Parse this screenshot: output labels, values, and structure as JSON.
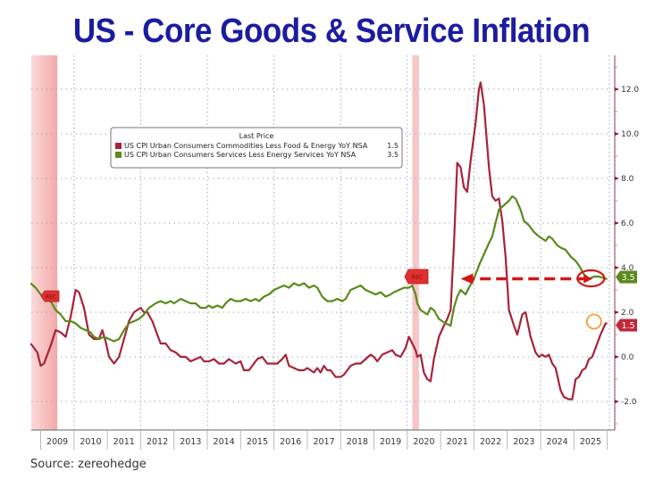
{
  "chart_data": {
    "type": "line",
    "title": "US - Core Goods & Service Inflation",
    "source": "Source: zereohedge",
    "xlabel": "",
    "ylabel": "",
    "x_range": [
      2008.7,
      2025.75
    ],
    "ylim": [
      -3.2,
      13.2
    ],
    "y_ticks": [
      -2.0,
      0.0,
      2.0,
      4.0,
      6.0,
      8.0,
      10.0,
      12.0
    ],
    "y_tick_labels": [
      "-2.0",
      "0.0",
      "2.0",
      "4.0",
      "6.0",
      "8.0",
      "10.0",
      "12.0"
    ],
    "x_tick_labels": [
      "2009",
      "2010",
      "2011",
      "2012",
      "2013",
      "2014",
      "2015",
      "2016",
      "2017",
      "2018",
      "2019",
      "2020",
      "2021",
      "2022",
      "2023",
      "2024",
      "2025"
    ],
    "grid": true,
    "legend": {
      "placement": "top-left",
      "header": "Last Price",
      "entries": [
        {
          "label": "US CPI Urban Consumers Commodities Less Food & Energy YoY NSA",
          "value": "1.5",
          "color": "#a8233a"
        },
        {
          "label": "US CPI Urban Consumers Services Less Energy Services YoY NSA",
          "value": "3.5",
          "color": "#5a8a1a"
        }
      ]
    },
    "recessions": [
      {
        "start": 2008.7,
        "end": 2009.5,
        "label": "REC"
      },
      {
        "start": 2020.15,
        "end": 2020.35,
        "label": "REC"
      }
    ],
    "last_value_tags": [
      {
        "series": "services",
        "value": "3.5",
        "color": "#5a8a1a"
      },
      {
        "series": "goods",
        "value": "1.5",
        "color": "#c0283c"
      }
    ],
    "annotations": [
      {
        "type": "dashed-arrow",
        "from_x": 2025.4,
        "to_x": 2021.6,
        "y": 3.5,
        "color": "#d01818"
      },
      {
        "type": "ellipse",
        "x": 2025.35,
        "y": 3.6,
        "color": "#d01818"
      },
      {
        "type": "circle",
        "x": 2025.55,
        "y": 1.5,
        "color": "#f0a030"
      }
    ],
    "series": [
      {
        "name": "US CPI Urban Consumers Commodities Less Food & Energy YoY NSA",
        "color": "#a8233a",
        "points": [
          [
            2008.7,
            0.6
          ],
          [
            2008.9,
            0.2
          ],
          [
            2009.0,
            -0.4
          ],
          [
            2009.1,
            -0.3
          ],
          [
            2009.3,
            0.5
          ],
          [
            2009.45,
            1.2
          ],
          [
            2009.6,
            1.1
          ],
          [
            2009.75,
            0.9
          ],
          [
            2009.9,
            1.8
          ],
          [
            2010.05,
            3.0
          ],
          [
            2010.15,
            2.9
          ],
          [
            2010.3,
            2.2
          ],
          [
            2010.45,
            1.0
          ],
          [
            2010.6,
            0.8
          ],
          [
            2010.75,
            0.8
          ],
          [
            2010.85,
            1.2
          ],
          [
            2010.95,
            0.7
          ],
          [
            2011.05,
            0.0
          ],
          [
            2011.2,
            -0.3
          ],
          [
            2011.35,
            0.0
          ],
          [
            2011.5,
            0.8
          ],
          [
            2011.65,
            1.6
          ],
          [
            2011.8,
            2.0
          ],
          [
            2012.0,
            2.2
          ],
          [
            2012.1,
            2.0
          ],
          [
            2012.2,
            2.0
          ],
          [
            2012.35,
            1.6
          ],
          [
            2012.5,
            1.0
          ],
          [
            2012.6,
            0.6
          ],
          [
            2012.75,
            0.6
          ],
          [
            2012.9,
            0.3
          ],
          [
            2013.05,
            0.2
          ],
          [
            2013.2,
            0.0
          ],
          [
            2013.35,
            0.0
          ],
          [
            2013.5,
            -0.2
          ],
          [
            2013.65,
            -0.1
          ],
          [
            2013.8,
            0.0
          ],
          [
            2013.9,
            -0.2
          ],
          [
            2014.05,
            -0.2
          ],
          [
            2014.2,
            -0.1
          ],
          [
            2014.35,
            -0.3
          ],
          [
            2014.5,
            -0.3
          ],
          [
            2014.65,
            -0.1
          ],
          [
            2014.75,
            -0.2
          ],
          [
            2014.85,
            -0.3
          ],
          [
            2015.0,
            -0.2
          ],
          [
            2015.1,
            -0.6
          ],
          [
            2015.25,
            -0.6
          ],
          [
            2015.4,
            -0.3
          ],
          [
            2015.5,
            -0.1
          ],
          [
            2015.65,
            0.0
          ],
          [
            2015.8,
            -0.3
          ],
          [
            2015.95,
            -0.3
          ],
          [
            2016.1,
            -0.3
          ],
          [
            2016.25,
            -0.1
          ],
          [
            2016.35,
            0.1
          ],
          [
            2016.45,
            -0.4
          ],
          [
            2016.6,
            -0.5
          ],
          [
            2016.75,
            -0.6
          ],
          [
            2016.9,
            -0.6
          ],
          [
            2017.0,
            -0.5
          ],
          [
            2017.1,
            -0.6
          ],
          [
            2017.2,
            -0.7
          ],
          [
            2017.3,
            -0.5
          ],
          [
            2017.4,
            -0.7
          ],
          [
            2017.5,
            -0.4
          ],
          [
            2017.6,
            -0.6
          ],
          [
            2017.7,
            -0.6
          ],
          [
            2017.85,
            -0.9
          ],
          [
            2018.0,
            -0.9
          ],
          [
            2018.1,
            -0.8
          ],
          [
            2018.2,
            -0.6
          ],
          [
            2018.3,
            -0.4
          ],
          [
            2018.45,
            -0.3
          ],
          [
            2018.6,
            -0.3
          ],
          [
            2018.75,
            -0.1
          ],
          [
            2018.9,
            0.1
          ],
          [
            2019.0,
            0.0
          ],
          [
            2019.1,
            -0.2
          ],
          [
            2019.25,
            0.1
          ],
          [
            2019.4,
            0.2
          ],
          [
            2019.55,
            0.3
          ],
          [
            2019.65,
            0.1
          ],
          [
            2019.8,
            0.0
          ],
          [
            2019.95,
            0.4
          ],
          [
            2020.05,
            0.9
          ],
          [
            2020.15,
            0.6
          ],
          [
            2020.25,
            0.3
          ],
          [
            2020.3,
            0.0
          ],
          [
            2020.4,
            0.1
          ],
          [
            2020.5,
            -0.7
          ],
          [
            2020.6,
            -1.0
          ],
          [
            2020.7,
            -1.1
          ],
          [
            2020.8,
            -0.1
          ],
          [
            2020.95,
            0.9
          ],
          [
            2021.1,
            1.4
          ],
          [
            2021.2,
            1.7
          ],
          [
            2021.3,
            2.1
          ],
          [
            2021.4,
            5.0
          ],
          [
            2021.5,
            8.7
          ],
          [
            2021.6,
            8.5
          ],
          [
            2021.7,
            7.6
          ],
          [
            2021.8,
            7.4
          ],
          [
            2021.9,
            8.8
          ],
          [
            2022.05,
            10.5
          ],
          [
            2022.15,
            12.0
          ],
          [
            2022.2,
            12.3
          ],
          [
            2022.3,
            11.3
          ],
          [
            2022.45,
            8.5
          ],
          [
            2022.55,
            7.2
          ],
          [
            2022.65,
            7.0
          ],
          [
            2022.75,
            7.1
          ],
          [
            2022.85,
            6.1
          ],
          [
            2022.95,
            4.5
          ],
          [
            2023.05,
            2.1
          ],
          [
            2023.2,
            1.4
          ],
          [
            2023.3,
            1.0
          ],
          [
            2023.45,
            1.9
          ],
          [
            2023.55,
            2.0
          ],
          [
            2023.7,
            0.9
          ],
          [
            2023.85,
            0.2
          ],
          [
            2023.95,
            0.0
          ],
          [
            2024.05,
            0.1
          ],
          [
            2024.15,
            0.0
          ],
          [
            2024.25,
            0.1
          ],
          [
            2024.35,
            -0.3
          ],
          [
            2024.45,
            -0.5
          ],
          [
            2024.6,
            -1.5
          ],
          [
            2024.7,
            -1.8
          ],
          [
            2024.85,
            -1.9
          ],
          [
            2024.95,
            -1.9
          ],
          [
            2025.05,
            -1.0
          ],
          [
            2025.15,
            -0.9
          ],
          [
            2025.25,
            -0.6
          ],
          [
            2025.35,
            -0.5
          ],
          [
            2025.45,
            -0.1
          ],
          [
            2025.55,
            0.0
          ],
          [
            2025.65,
            0.4
          ],
          [
            2025.8,
            1.0
          ],
          [
            2025.95,
            1.5
          ],
          [
            2026.0,
            1.5
          ]
        ]
      },
      {
        "name": "US CPI Urban Consumers Services Less Energy Services YoY NSA",
        "color": "#5a8a1a",
        "points": [
          [
            2008.7,
            3.3
          ],
          [
            2008.85,
            3.1
          ],
          [
            2009.0,
            2.8
          ],
          [
            2009.15,
            2.6
          ],
          [
            2009.3,
            2.5
          ],
          [
            2009.45,
            2.1
          ],
          [
            2009.6,
            1.9
          ],
          [
            2009.75,
            1.6
          ],
          [
            2009.9,
            1.6
          ],
          [
            2010.05,
            1.5
          ],
          [
            2010.2,
            1.3
          ],
          [
            2010.35,
            1.2
          ],
          [
            2010.5,
            1.1
          ],
          [
            2010.6,
            0.9
          ],
          [
            2010.75,
            0.8
          ],
          [
            2010.9,
            0.9
          ],
          [
            2011.05,
            0.8
          ],
          [
            2011.2,
            0.7
          ],
          [
            2011.35,
            0.8
          ],
          [
            2011.5,
            1.2
          ],
          [
            2011.65,
            1.5
          ],
          [
            2011.8,
            1.6
          ],
          [
            2011.95,
            1.7
          ],
          [
            2012.1,
            1.9
          ],
          [
            2012.25,
            2.2
          ],
          [
            2012.45,
            2.4
          ],
          [
            2012.6,
            2.5
          ],
          [
            2012.75,
            2.4
          ],
          [
            2012.9,
            2.5
          ],
          [
            2013.0,
            2.4
          ],
          [
            2013.2,
            2.6
          ],
          [
            2013.35,
            2.5
          ],
          [
            2013.5,
            2.4
          ],
          [
            2013.65,
            2.4
          ],
          [
            2013.8,
            2.2
          ],
          [
            2013.95,
            2.2
          ],
          [
            2014.05,
            2.3
          ],
          [
            2014.15,
            2.2
          ],
          [
            2014.3,
            2.3
          ],
          [
            2014.45,
            2.2
          ],
          [
            2014.55,
            2.4
          ],
          [
            2014.7,
            2.6
          ],
          [
            2014.85,
            2.5
          ],
          [
            2015.0,
            2.5
          ],
          [
            2015.15,
            2.6
          ],
          [
            2015.3,
            2.5
          ],
          [
            2015.45,
            2.6
          ],
          [
            2015.55,
            2.5
          ],
          [
            2015.7,
            2.7
          ],
          [
            2015.85,
            2.8
          ],
          [
            2016.0,
            3.0
          ],
          [
            2016.15,
            3.1
          ],
          [
            2016.3,
            3.2
          ],
          [
            2016.45,
            3.1
          ],
          [
            2016.6,
            3.3
          ],
          [
            2016.75,
            3.2
          ],
          [
            2016.9,
            3.3
          ],
          [
            2017.05,
            3.1
          ],
          [
            2017.2,
            3.2
          ],
          [
            2017.3,
            3.1
          ],
          [
            2017.45,
            2.7
          ],
          [
            2017.6,
            2.5
          ],
          [
            2017.75,
            2.5
          ],
          [
            2017.9,
            2.6
          ],
          [
            2018.05,
            2.5
          ],
          [
            2018.15,
            2.6
          ],
          [
            2018.3,
            3.0
          ],
          [
            2018.45,
            3.1
          ],
          [
            2018.6,
            3.2
          ],
          [
            2018.75,
            3.0
          ],
          [
            2018.9,
            2.9
          ],
          [
            2019.05,
            2.8
          ],
          [
            2019.2,
            2.9
          ],
          [
            2019.35,
            2.7
          ],
          [
            2019.5,
            2.8
          ],
          [
            2019.6,
            2.9
          ],
          [
            2019.75,
            3.0
          ],
          [
            2019.9,
            3.1
          ],
          [
            2020.05,
            3.1
          ],
          [
            2020.15,
            3.2
          ],
          [
            2020.25,
            2.8
          ],
          [
            2020.3,
            2.4
          ],
          [
            2020.4,
            2.1
          ],
          [
            2020.5,
            2.0
          ],
          [
            2020.6,
            1.9
          ],
          [
            2020.7,
            2.2
          ],
          [
            2020.8,
            2.1
          ],
          [
            2020.95,
            1.7
          ],
          [
            2021.05,
            1.6
          ],
          [
            2021.15,
            1.5
          ],
          [
            2021.3,
            1.4
          ],
          [
            2021.4,
            2.2
          ],
          [
            2021.5,
            2.7
          ],
          [
            2021.6,
            3.0
          ],
          [
            2021.75,
            2.8
          ],
          [
            2021.85,
            3.1
          ],
          [
            2022.0,
            3.5
          ],
          [
            2022.15,
            4.1
          ],
          [
            2022.3,
            4.6
          ],
          [
            2022.45,
            5.1
          ],
          [
            2022.55,
            5.4
          ],
          [
            2022.65,
            6.0
          ],
          [
            2022.75,
            6.6
          ],
          [
            2022.9,
            6.8
          ],
          [
            2023.05,
            7.0
          ],
          [
            2023.15,
            7.2
          ],
          [
            2023.25,
            7.1
          ],
          [
            2023.4,
            6.6
          ],
          [
            2023.5,
            6.1
          ],
          [
            2023.65,
            5.9
          ],
          [
            2023.8,
            5.6
          ],
          [
            2023.95,
            5.4
          ],
          [
            2024.05,
            5.3
          ],
          [
            2024.15,
            5.2
          ],
          [
            2024.25,
            5.4
          ],
          [
            2024.35,
            5.3
          ],
          [
            2024.5,
            5.0
          ],
          [
            2024.6,
            4.9
          ],
          [
            2024.75,
            4.8
          ],
          [
            2024.9,
            4.5
          ],
          [
            2025.05,
            4.3
          ],
          [
            2025.15,
            4.1
          ],
          [
            2025.3,
            3.7
          ],
          [
            2025.45,
            3.5
          ],
          [
            2025.6,
            3.6
          ],
          [
            2025.75,
            3.6
          ],
          [
            2025.95,
            3.5
          ],
          [
            2026.0,
            3.5
          ]
        ]
      }
    ]
  }
}
